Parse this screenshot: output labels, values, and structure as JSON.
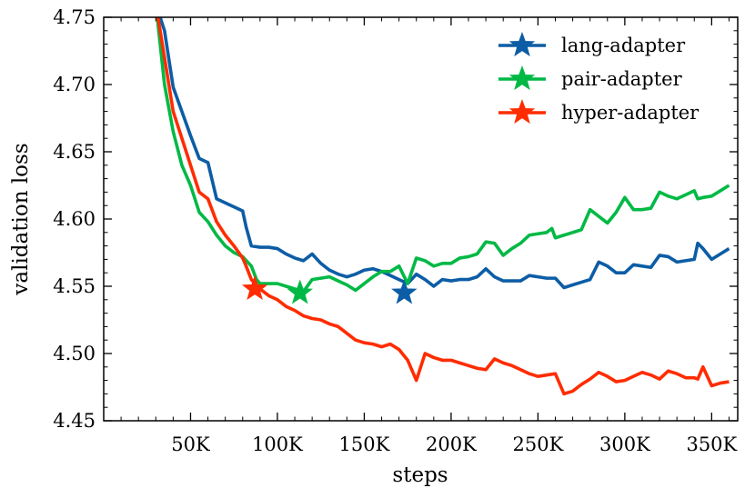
{
  "chart_data": {
    "type": "line",
    "xlabel": "steps",
    "ylabel": "validation loss",
    "xlim": [
      0,
      365000
    ],
    "ylim": [
      4.45,
      4.75
    ],
    "x_ticks": [
      {
        "value": 50000,
        "label": "50K"
      },
      {
        "value": 100000,
        "label": "100K"
      },
      {
        "value": 150000,
        "label": "150K"
      },
      {
        "value": 200000,
        "label": "200K"
      },
      {
        "value": 250000,
        "label": "250K"
      },
      {
        "value": 300000,
        "label": "300K"
      },
      {
        "value": 350000,
        "label": "350K"
      }
    ],
    "y_ticks": [
      {
        "value": 4.45,
        "label": "4.45"
      },
      {
        "value": 4.5,
        "label": "4.50"
      },
      {
        "value": 4.55,
        "label": "4.55"
      },
      {
        "value": 4.6,
        "label": "4.60"
      },
      {
        "value": 4.65,
        "label": "4.65"
      },
      {
        "value": 4.7,
        "label": "4.70"
      },
      {
        "value": 4.75,
        "label": "4.75"
      }
    ],
    "grid": false,
    "legend_position": "top-right",
    "series": [
      {
        "name": "lang-adapter",
        "color": "#0c5da5",
        "x": [
          30000,
          35000,
          40000,
          45000,
          50000,
          55000,
          60000,
          65000,
          70000,
          75000,
          80000,
          82000,
          85000,
          90000,
          95000,
          100000,
          105000,
          110000,
          115000,
          120000,
          125000,
          130000,
          135000,
          140000,
          145000,
          150000,
          155000,
          160000,
          165000,
          170000,
          175000,
          180000,
          185000,
          190000,
          195000,
          200000,
          205000,
          210000,
          215000,
          220000,
          225000,
          230000,
          235000,
          240000,
          245000,
          250000,
          255000,
          260000,
          265000,
          270000,
          275000,
          280000,
          285000,
          290000,
          295000,
          300000,
          305000,
          310000,
          315000,
          320000,
          325000,
          330000,
          335000,
          340000,
          342000,
          345000,
          350000,
          355000,
          360000
        ],
        "y": [
          4.76,
          4.74,
          4.698,
          4.68,
          4.662,
          4.645,
          4.642,
          4.615,
          4.612,
          4.609,
          4.606,
          4.594,
          4.58,
          4.579,
          4.579,
          4.578,
          4.574,
          4.571,
          4.569,
          4.574,
          4.567,
          4.562,
          4.559,
          4.557,
          4.559,
          4.562,
          4.563,
          4.561,
          4.558,
          4.555,
          4.552,
          4.559,
          4.555,
          4.55,
          4.555,
          4.554,
          4.555,
          4.555,
          4.557,
          4.563,
          4.557,
          4.554,
          4.554,
          4.554,
          4.558,
          4.557,
          4.556,
          4.556,
          4.549,
          4.551,
          4.553,
          4.555,
          4.568,
          4.565,
          4.56,
          4.56,
          4.566,
          4.565,
          4.564,
          4.573,
          4.572,
          4.568,
          4.569,
          4.57,
          4.582,
          4.578,
          4.57,
          4.574,
          4.578
        ],
        "marker": {
          "x": 173000,
          "y": 4.545
        }
      },
      {
        "name": "pair-adapter",
        "color": "#00b945",
        "x": [
          30000,
          35000,
          40000,
          42000,
          45000,
          50000,
          55000,
          60000,
          65000,
          70000,
          75000,
          80000,
          85000,
          88000,
          90000,
          95000,
          100000,
          105000,
          110000,
          115000,
          120000,
          125000,
          130000,
          135000,
          140000,
          145000,
          150000,
          155000,
          160000,
          165000,
          170000,
          175000,
          180000,
          185000,
          190000,
          195000,
          200000,
          205000,
          210000,
          215000,
          220000,
          225000,
          230000,
          235000,
          240000,
          245000,
          250000,
          255000,
          258000,
          260000,
          265000,
          270000,
          275000,
          280000,
          285000,
          290000,
          295000,
          300000,
          305000,
          310000,
          315000,
          320000,
          325000,
          330000,
          335000,
          340000,
          342000,
          345000,
          350000,
          355000,
          360000
        ],
        "y": [
          4.76,
          4.7,
          4.665,
          4.655,
          4.64,
          4.625,
          4.605,
          4.598,
          4.588,
          4.58,
          4.575,
          4.572,
          4.565,
          4.555,
          4.552,
          4.552,
          4.552,
          4.55,
          4.548,
          4.546,
          4.555,
          4.556,
          4.557,
          4.554,
          4.551,
          4.547,
          4.552,
          4.557,
          4.561,
          4.561,
          4.565,
          4.552,
          4.571,
          4.569,
          4.565,
          4.567,
          4.567,
          4.571,
          4.572,
          4.574,
          4.583,
          4.582,
          4.573,
          4.578,
          4.582,
          4.588,
          4.589,
          4.59,
          4.593,
          4.586,
          4.588,
          4.59,
          4.592,
          4.607,
          4.602,
          4.597,
          4.605,
          4.616,
          4.607,
          4.607,
          4.608,
          4.62,
          4.617,
          4.615,
          4.618,
          4.621,
          4.615,
          4.616,
          4.617,
          4.621,
          4.625
        ],
        "marker": {
          "x": 113000,
          "y": 4.545
        }
      },
      {
        "name": "hyper-adapter",
        "color": "#ff2c00",
        "x": [
          30000,
          35000,
          40000,
          45000,
          50000,
          55000,
          60000,
          65000,
          70000,
          75000,
          80000,
          82000,
          85000,
          90000,
          95000,
          100000,
          105000,
          110000,
          115000,
          120000,
          125000,
          130000,
          135000,
          140000,
          145000,
          150000,
          155000,
          160000,
          165000,
          170000,
          175000,
          180000,
          185000,
          190000,
          195000,
          200000,
          205000,
          210000,
          215000,
          220000,
          225000,
          230000,
          235000,
          240000,
          245000,
          250000,
          255000,
          260000,
          265000,
          270000,
          275000,
          280000,
          285000,
          290000,
          295000,
          300000,
          305000,
          310000,
          315000,
          320000,
          325000,
          330000,
          335000,
          340000,
          342000,
          345000,
          350000,
          355000,
          360000
        ],
        "y": [
          4.76,
          4.72,
          4.68,
          4.66,
          4.64,
          4.62,
          4.615,
          4.598,
          4.588,
          4.58,
          4.571,
          4.565,
          4.555,
          4.548,
          4.543,
          4.54,
          4.535,
          4.532,
          4.528,
          4.526,
          4.525,
          4.522,
          4.52,
          4.515,
          4.51,
          4.508,
          4.507,
          4.505,
          4.507,
          4.503,
          4.495,
          4.48,
          4.5,
          4.497,
          4.495,
          4.495,
          4.493,
          4.491,
          4.489,
          4.488,
          4.496,
          4.493,
          4.491,
          4.488,
          4.485,
          4.483,
          4.484,
          4.485,
          4.47,
          4.472,
          4.477,
          4.481,
          4.486,
          4.483,
          4.479,
          4.48,
          4.483,
          4.486,
          4.484,
          4.481,
          4.487,
          4.485,
          4.482,
          4.482,
          4.481,
          4.49,
          4.476,
          4.478,
          4.479
        ],
        "marker": {
          "x": 87000,
          "y": 4.548
        }
      }
    ]
  }
}
